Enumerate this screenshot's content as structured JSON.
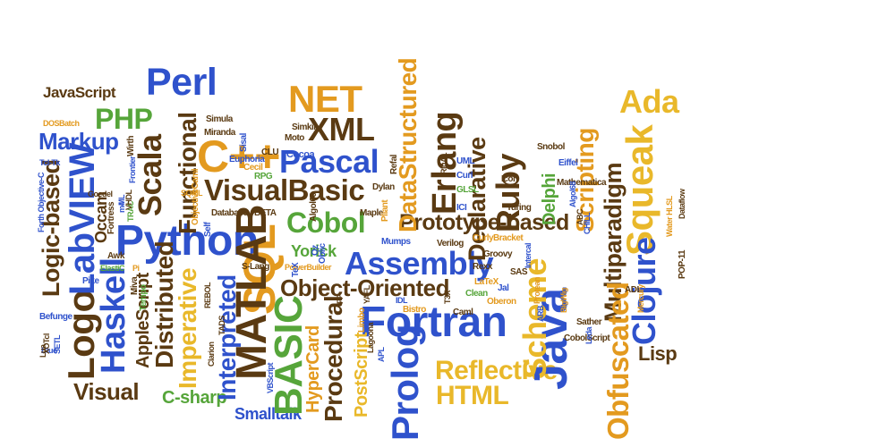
{
  "word_cloud": {
    "colors": {
      "blue": "#2f52cc",
      "brown": "#5a3a12",
      "orange": "#e39a1f",
      "green": "#56a53a",
      "gold": "#e9b82a"
    },
    "words": [
      {
        "text": "Python",
        "color": "blue"
      },
      {
        "text": "Fortran",
        "color": "blue"
      },
      {
        "text": "Assembly",
        "color": "blue"
      },
      {
        "text": "Java",
        "color": "blue"
      },
      {
        "text": "Cobol",
        "color": "green"
      },
      {
        "text": "Pascal",
        "color": "blue"
      },
      {
        "text": "VisualBasic",
        "color": "brown"
      },
      {
        "text": "Object-Oriented",
        "color": "brown"
      },
      {
        "text": "Prototype-based",
        "color": "brown"
      },
      {
        "text": "C++",
        "color": "orange"
      },
      {
        "text": "SQL",
        "color": "orange"
      },
      {
        "text": "NET",
        "color": "orange"
      },
      {
        "text": "XML",
        "color": "brown"
      },
      {
        "text": "Perl",
        "color": "blue"
      },
      {
        "text": "PHP",
        "color": "green"
      },
      {
        "text": "JavaScript",
        "color": "brown"
      },
      {
        "text": "Markup",
        "color": "blue"
      },
      {
        "text": "Ruby",
        "color": "brown"
      },
      {
        "text": "Erlang",
        "color": "brown"
      },
      {
        "text": "Declarative",
        "color": "brown"
      },
      {
        "text": "DataStructured",
        "color": "orange"
      },
      {
        "text": "Scheme",
        "color": "gold"
      },
      {
        "text": "Scripting",
        "color": "orange"
      },
      {
        "text": "Squeak",
        "color": "gold"
      },
      {
        "text": "Multiparadigm",
        "color": "brown"
      },
      {
        "text": "Clojure",
        "color": "blue"
      },
      {
        "text": "Obfuscated",
        "color": "orange"
      },
      {
        "text": "Delphi",
        "color": "green"
      },
      {
        "text": "Ada",
        "color": "gold"
      },
      {
        "text": "Lisp",
        "color": "brown"
      },
      {
        "text": "Reflective",
        "color": "gold"
      },
      {
        "text": "HTML",
        "color": "gold"
      },
      {
        "text": "Prolog",
        "color": "blue"
      },
      {
        "text": "Procedural",
        "color": "brown"
      },
      {
        "text": "PostScript",
        "color": "gold"
      },
      {
        "text": "HyperCard",
        "color": "orange"
      },
      {
        "text": "BASIC",
        "color": "green"
      },
      {
        "text": "MATLAB",
        "color": "brown"
      },
      {
        "text": "Interpreted",
        "color": "blue"
      },
      {
        "text": "Imperative",
        "color": "gold"
      },
      {
        "text": "Distributed",
        "color": "brown"
      },
      {
        "text": "AppleScript",
        "color": "brown"
      },
      {
        "text": "Haskell",
        "color": "blue"
      },
      {
        "text": "Logo",
        "color": "brown"
      },
      {
        "text": "LabVIEW",
        "color": "blue"
      },
      {
        "text": "Logic-based",
        "color": "brown"
      },
      {
        "text": "Scala",
        "color": "brown"
      },
      {
        "text": "Functional",
        "color": "brown"
      },
      {
        "text": "Visual",
        "color": "brown"
      },
      {
        "text": "C-sharp",
        "color": "green"
      },
      {
        "text": "Smalltalk",
        "color": "blue"
      },
      {
        "text": "Yorick",
        "color": "green"
      },
      {
        "text": "Occam",
        "color": "brown"
      },
      {
        "text": "Simula",
        "color": "brown"
      },
      {
        "text": "Miranda",
        "color": "brown"
      },
      {
        "text": "Sisal",
        "color": "blue"
      },
      {
        "text": "CLU",
        "color": "brown"
      },
      {
        "text": "Moto",
        "color": "brown"
      },
      {
        "text": "Simkin",
        "color": "brown"
      },
      {
        "text": "Cocoa",
        "color": "blue"
      },
      {
        "text": "Euphoria",
        "color": "blue"
      },
      {
        "text": "RPG",
        "color": "green"
      },
      {
        "text": "Cecil",
        "color": "orange"
      },
      {
        "text": "Database",
        "color": "brown"
      },
      {
        "text": "BETA",
        "color": "brown"
      },
      {
        "text": "Maple",
        "color": "brown"
      },
      {
        "text": "Mumps",
        "color": "blue"
      },
      {
        "text": "Verilog",
        "color": "brown"
      },
      {
        "text": "CurlyBracket",
        "color": "orange"
      },
      {
        "text": "Groovy",
        "color": "brown"
      },
      {
        "text": "Rexx",
        "color": "brown"
      },
      {
        "text": "Jal",
        "color": "blue"
      },
      {
        "text": "Oberon",
        "color": "orange"
      },
      {
        "text": "LaTeX",
        "color": "orange"
      },
      {
        "text": "Clean",
        "color": "green"
      },
      {
        "text": "S-Lang",
        "color": "brown"
      },
      {
        "text": "PowerBuilder",
        "color": "orange"
      },
      {
        "text": "Wirth",
        "color": "brown"
      },
      {
        "text": "DOSBatch",
        "color": "orange"
      },
      {
        "text": "Tcl-Tk",
        "color": "blue"
      },
      {
        "text": "Goedel",
        "color": "brown"
      },
      {
        "text": "Awk",
        "color": "brown"
      },
      {
        "text": "Pike",
        "color": "blue"
      },
      {
        "text": "ElastiC",
        "color": "green"
      },
      {
        "text": "Befunge",
        "color": "blue"
      },
      {
        "text": "Blue",
        "color": "blue"
      },
      {
        "text": "Lua",
        "color": "brown"
      },
      {
        "text": "Miva",
        "color": "brown"
      },
      {
        "text": "Sather",
        "color": "brown"
      },
      {
        "text": "CobolScript",
        "color": "brown"
      },
      {
        "text": "ADL",
        "color": "brown"
      },
      {
        "text": "Leda",
        "color": "blue"
      },
      {
        "text": "POP-11",
        "color": "brown"
      },
      {
        "text": "Mercury",
        "color": "orange"
      },
      {
        "text": "Turing",
        "color": "brown"
      },
      {
        "text": "Snobol",
        "color": "brown"
      },
      {
        "text": "Eiffel",
        "color": "blue"
      },
      {
        "text": "Icon",
        "color": "brown"
      },
      {
        "text": "UML",
        "color": "blue"
      },
      {
        "text": "Curl",
        "color": "blue"
      },
      {
        "text": "GLSL",
        "color": "green"
      },
      {
        "text": "Refal",
        "color": "brown"
      },
      {
        "text": "ICI",
        "color": "blue"
      },
      {
        "text": "Caml",
        "color": "brown"
      },
      {
        "text": "Limbo",
        "color": "orange"
      },
      {
        "text": "YAFL",
        "color": "brown"
      },
      {
        "text": "Bistro",
        "color": "orange"
      },
      {
        "text": "IDL",
        "color": "blue"
      },
      {
        "text": "SAS",
        "color": "brown"
      },
      {
        "text": "Dylan",
        "color": "brown"
      },
      {
        "text": "Pliant",
        "color": "orange"
      },
      {
        "text": "TeX",
        "color": "blue"
      },
      {
        "text": "Tempo",
        "color": "green"
      },
      {
        "text": "Self",
        "color": "blue"
      },
      {
        "text": "ObjectiveCaml",
        "color": "orange"
      },
      {
        "text": "TRAC",
        "color": "green"
      },
      {
        "text": "ML",
        "color": "blue"
      },
      {
        "text": "Oz",
        "color": "blue"
      },
      {
        "text": "Algol60",
        "color": "brown"
      },
      {
        "text": "m4",
        "color": "blue"
      },
      {
        "text": "Frontier",
        "color": "blue"
      },
      {
        "text": "Fortress",
        "color": "brown"
      },
      {
        "text": "REBOL",
        "color": "brown"
      },
      {
        "text": "Clarion",
        "color": "brown"
      },
      {
        "text": "TADS",
        "color": "brown"
      },
      {
        "text": "VBScript",
        "color": "blue"
      },
      {
        "text": "APL",
        "color": "blue"
      },
      {
        "text": "Lagoona",
        "color": "brown"
      },
      {
        "text": "Intercal",
        "color": "blue"
      },
      {
        "text": "Protean",
        "color": "orange"
      },
      {
        "text": "ARB",
        "color": "blue"
      },
      {
        "text": "Algol68",
        "color": "blue"
      },
      {
        "text": "Water HLSL",
        "color": "orange"
      },
      {
        "text": "Dataflow",
        "color": "brown"
      },
      {
        "text": "CHILL",
        "color": "blue"
      },
      {
        "text": "ABC",
        "color": "brown"
      },
      {
        "text": "Pi",
        "color": "orange"
      },
      {
        "text": "Mathematica",
        "color": "brown"
      },
      {
        "text": "SQML",
        "color": "orange"
      },
      {
        "text": "VHDL",
        "color": "brown"
      },
      {
        "text": "Forth Objective-C",
        "color": "blue"
      },
      {
        "text": "Oblic",
        "color": "blue"
      },
      {
        "text": "BigWig",
        "color": "orange"
      },
      {
        "text": "FP",
        "color": "brown"
      },
      {
        "text": "XOTcl",
        "color": "brown"
      },
      {
        "text": "SETL",
        "color": "blue"
      },
      {
        "text": "T3X",
        "color": "brown"
      },
      {
        "text": "RigAL",
        "color": "brown"
      }
    ]
  }
}
